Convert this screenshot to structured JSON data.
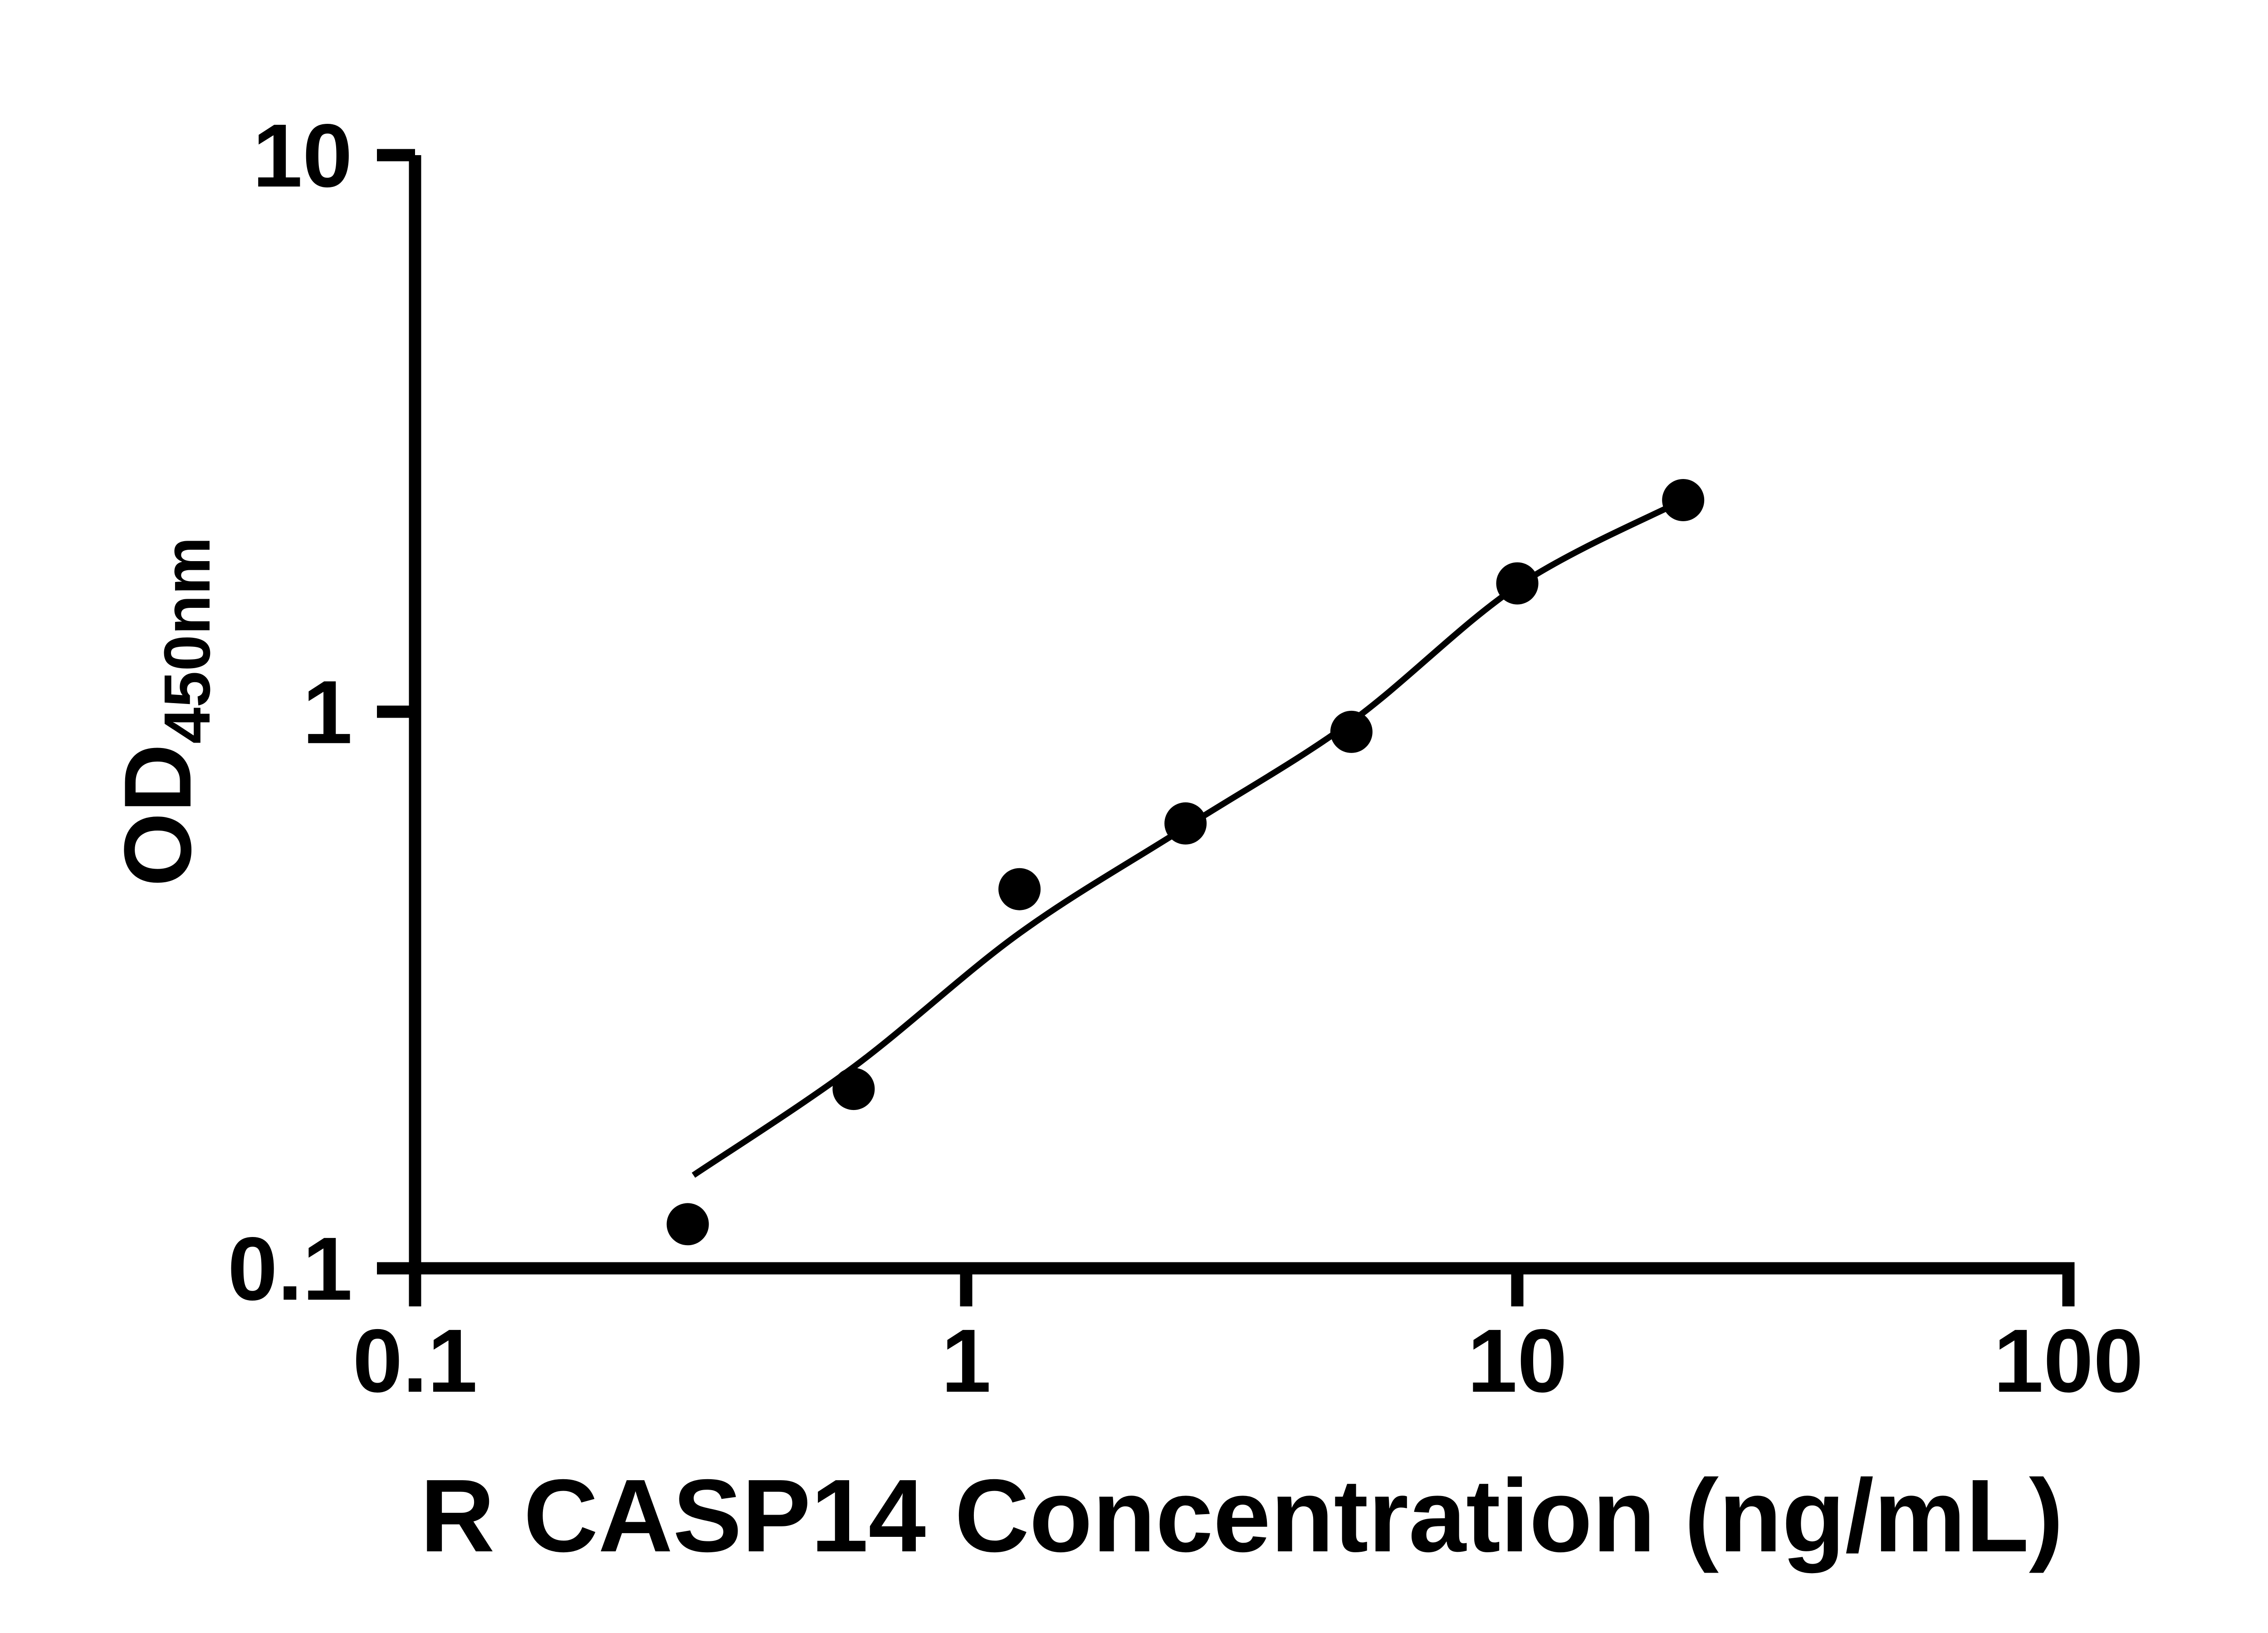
{
  "page": {
    "background": "#ffffff"
  },
  "chart_data": {
    "type": "scatter",
    "title": "",
    "xlabel": "R CASP14 Concentration (ng/mL)",
    "ylabel": "OD",
    "ylabel_subscript": "450nm",
    "x_scale": "log",
    "y_scale": "log",
    "xlim": [
      0.1,
      100
    ],
    "ylim": [
      0.1,
      10
    ],
    "x_ticks": [
      0.1,
      1,
      10,
      100
    ],
    "x_tick_labels": [
      "0.1",
      "1",
      "10",
      "100"
    ],
    "y_ticks": [
      0.1,
      1,
      10
    ],
    "y_tick_labels": [
      "0.1",
      "1",
      "10"
    ],
    "grid": false,
    "legend": false,
    "points": {
      "marker": "filled-circle",
      "x": [
        0.3125,
        0.625,
        1.25,
        2.5,
        5,
        10,
        20
      ],
      "y": [
        0.12,
        0.21,
        0.48,
        0.63,
        0.92,
        1.7,
        2.4
      ]
    },
    "fit_curve": [
      [
        0.32,
        0.147
      ],
      [
        0.625,
        0.23
      ],
      [
        1.25,
        0.4
      ],
      [
        2.5,
        0.62
      ],
      [
        5,
        0.96
      ],
      [
        10,
        1.68
      ],
      [
        20,
        2.4
      ]
    ],
    "colors": {
      "points": "#000000",
      "line": "#000000",
      "axis": "#000000",
      "text": "#000000"
    }
  }
}
